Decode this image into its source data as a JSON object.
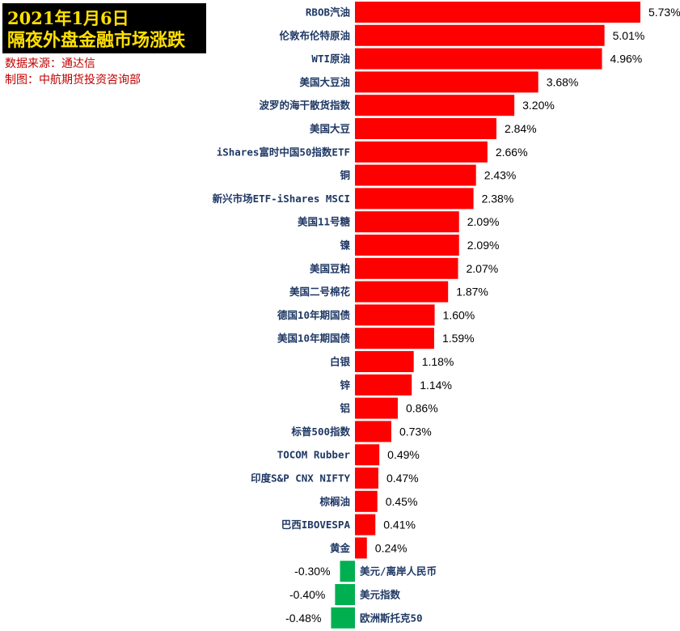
{
  "header": {
    "title_line1": "2021年1月6日",
    "title_line2": "隔夜外盘金融市场涨跌",
    "source": "数据来源：通达信",
    "credit": "制图：中航期货投资咨询部"
  },
  "colors": {
    "positive": "#ff0000",
    "negative": "#00b050",
    "label": "#1f3864",
    "source_text": "#c00000"
  },
  "chart_data": {
    "type": "bar",
    "orientation": "horizontal",
    "title": "隔夜外盘金融市场涨跌",
    "categories": [
      "RBOB汽油",
      "伦敦布伦特原油",
      "WTI原油",
      "美国大豆油",
      "波罗的海干散货指数",
      "美国大豆",
      "iShares富时中国50指数ETF",
      "铜",
      "新兴市场ETF-iShares MSCI",
      "美国11号糖",
      "镍",
      "美国豆粕",
      "美国二号棉花",
      "德国10年期国债",
      "美国10年期国债",
      "白银",
      "锌",
      "铝",
      "标普500指数",
      "TOCOM Rubber",
      "印度S&P CNX NIFTY",
      "棕榈油",
      "巴西IBOVESPA",
      "黄金",
      "美元/离岸人民币",
      "美元指数",
      "欧洲斯托克50"
    ],
    "values": [
      5.73,
      5.01,
      4.96,
      3.68,
      3.2,
      2.84,
      2.66,
      2.43,
      2.38,
      2.09,
      2.09,
      2.07,
      1.87,
      1.6,
      1.59,
      1.18,
      1.14,
      0.86,
      0.73,
      0.49,
      0.47,
      0.45,
      0.41,
      0.24,
      -0.3,
      -0.4,
      -0.48
    ],
    "value_labels": [
      "5.73%",
      "5.01%",
      "4.96%",
      "3.68%",
      "3.20%",
      "2.84%",
      "2.66%",
      "2.43%",
      "2.38%",
      "2.09%",
      "2.09%",
      "2.07%",
      "1.87%",
      "1.60%",
      "1.59%",
      "1.18%",
      "1.14%",
      "0.86%",
      "0.73%",
      "0.49%",
      "0.47%",
      "0.45%",
      "0.41%",
      "0.24%",
      "-0.30%",
      "-0.40%",
      "-0.48%"
    ],
    "unit": "%",
    "grid": false,
    "legend": "none"
  }
}
